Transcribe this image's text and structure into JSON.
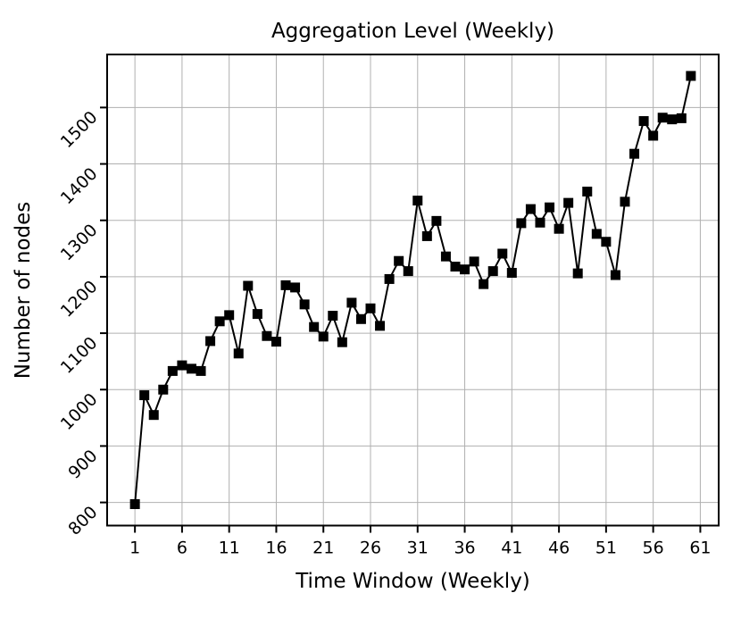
{
  "chart_data": {
    "type": "line",
    "title": "Aggregation Level (Weekly)",
    "xlabel": "Time Window (Weekly)",
    "ylabel": "Number of nodes",
    "series_name": "Number of nodes",
    "x": [
      1,
      2,
      3,
      4,
      5,
      6,
      7,
      8,
      9,
      10,
      11,
      12,
      13,
      14,
      15,
      16,
      17,
      18,
      19,
      20,
      21,
      22,
      23,
      24,
      25,
      26,
      27,
      28,
      29,
      30,
      31,
      32,
      33,
      34,
      35,
      36,
      37,
      38,
      39,
      40,
      41,
      42,
      43,
      44,
      45,
      46,
      47,
      48,
      49,
      50,
      51,
      52,
      53,
      54,
      55,
      56,
      57,
      58,
      59,
      60
    ],
    "values": [
      797,
      990,
      955,
      1000,
      1033,
      1043,
      1037,
      1033,
      1086,
      1121,
      1132,
      1064,
      1184,
      1134,
      1095,
      1085,
      1185,
      1181,
      1151,
      1111,
      1094,
      1131,
      1084,
      1154,
      1125,
      1144,
      1113,
      1196,
      1228,
      1210,
      1335,
      1272,
      1299,
      1236,
      1218,
      1213,
      1227,
      1187,
      1210,
      1241,
      1207,
      1295,
      1320,
      1296,
      1323,
      1285,
      1331,
      1206,
      1351,
      1276,
      1262,
      1203,
      1333,
      1418,
      1476,
      1450,
      1482,
      1479,
      1481,
      1556
    ],
    "xticks": [
      1,
      6,
      11,
      16,
      21,
      26,
      31,
      36,
      41,
      46,
      51,
      56,
      61
    ],
    "yticks": [
      800,
      900,
      1000,
      1100,
      1200,
      1300,
      1400,
      1500
    ],
    "xlim": [
      -1.95,
      62.95
    ],
    "ylim": [
      759,
      1594
    ],
    "grid": true,
    "legend": "none",
    "line_color": "#000000",
    "marker": "square",
    "marker_color": "#000000",
    "grid_color": "#b0b0b0",
    "spine_color": "#000000",
    "background_color": "#ffffff",
    "ytick_rotation_deg": 45
  }
}
